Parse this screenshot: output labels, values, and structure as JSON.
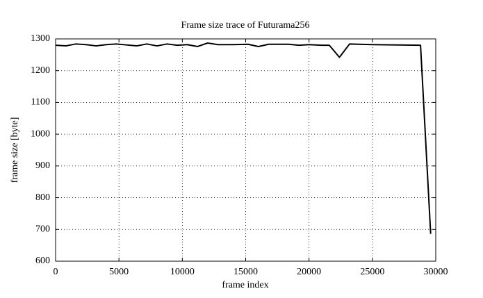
{
  "chart_data": {
    "type": "line",
    "title": "Frame size trace of Futurama256",
    "xlabel": "frame index",
    "ylabel": "frame size [byte]",
    "x": [
      0,
      800,
      1600,
      2400,
      3200,
      4000,
      4800,
      5600,
      6400,
      7200,
      8000,
      8800,
      9600,
      10400,
      11200,
      12000,
      12800,
      14000,
      15200,
      16000,
      16800,
      18400,
      19200,
      20000,
      21000,
      21600,
      22400,
      23200,
      25000,
      28800,
      29600
    ],
    "series": [
      {
        "name": "Futurama256",
        "color": "#000000",
        "values": [
          1280,
          1278,
          1284,
          1282,
          1278,
          1282,
          1284,
          1281,
          1278,
          1284,
          1278,
          1284,
          1280,
          1282,
          1276,
          1287,
          1282,
          1282,
          1283,
          1276,
          1283,
          1283,
          1280,
          1282,
          1280,
          1280,
          1242,
          1284,
          1282,
          1280,
          686
        ]
      }
    ],
    "xlim": [
      0,
      30000
    ],
    "xticks": [
      0,
      5000,
      10000,
      15000,
      20000,
      25000,
      30000
    ],
    "ylim": [
      600,
      1300
    ],
    "yticks": [
      600,
      700,
      800,
      900,
      1000,
      1100,
      1200,
      1300
    ],
    "grid": true
  }
}
